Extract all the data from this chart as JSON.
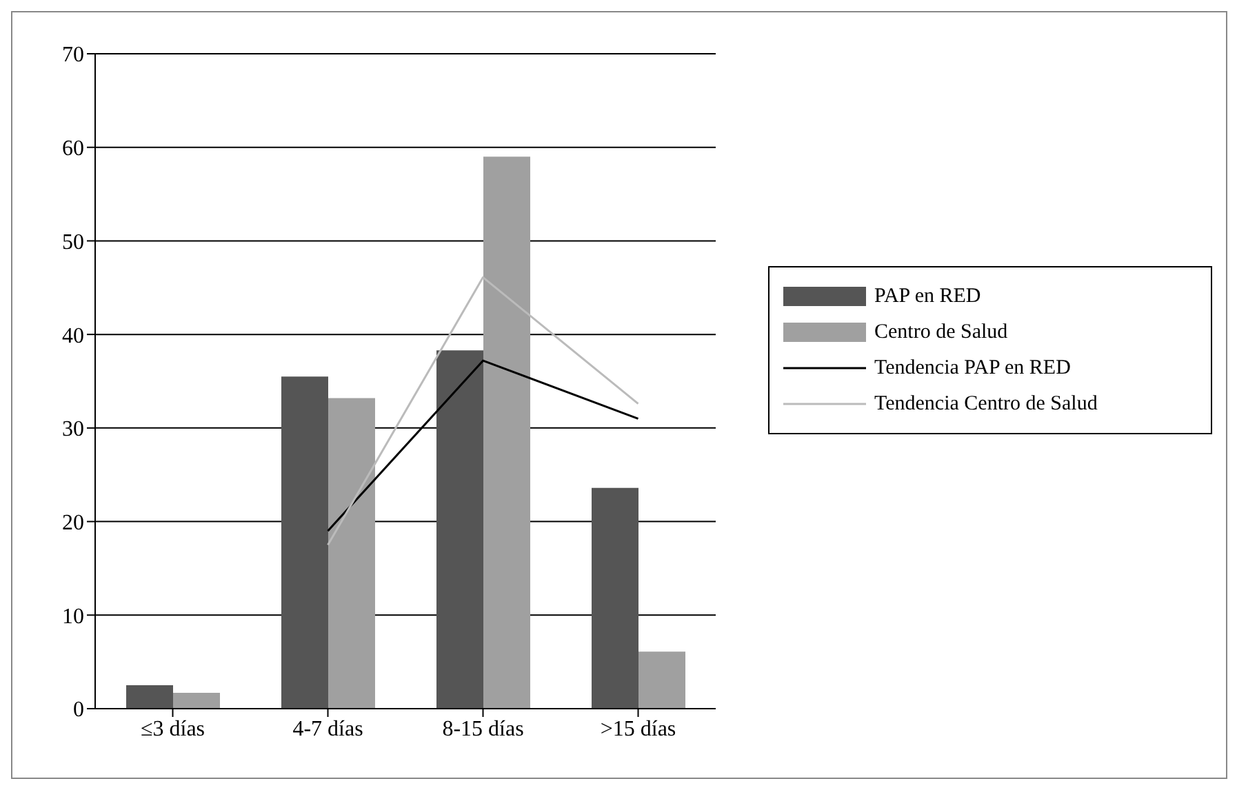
{
  "chart_data": {
    "type": "bar",
    "categories": [
      "≤3 días",
      "4-7 días",
      "8-15 días",
      ">15 días"
    ],
    "series": [
      {
        "name": "PAP en RED",
        "color": "#555555",
        "values": [
          2.5,
          35.5,
          38.3,
          23.6
        ]
      },
      {
        "name": "Centro de Salud",
        "color": "#a0a0a0",
        "values": [
          1.7,
          33.2,
          59,
          6.1
        ]
      },
      {
        "name": "Tendencia PAP en RED",
        "type": "line",
        "color": "#000000",
        "values": [
          null,
          19,
          37.2,
          31
        ]
      },
      {
        "name": "Tendencia Centro de Salud",
        "type": "line",
        "color": "#bbbbbb",
        "values": [
          null,
          17.5,
          46.1,
          32.6
        ]
      }
    ],
    "ylim": [
      0,
      70
    ],
    "yticks": [
      0,
      10,
      20,
      30,
      40,
      50,
      60,
      70
    ],
    "grid": "y",
    "legend": "right",
    "marker": "none",
    "line_style": "solid"
  }
}
